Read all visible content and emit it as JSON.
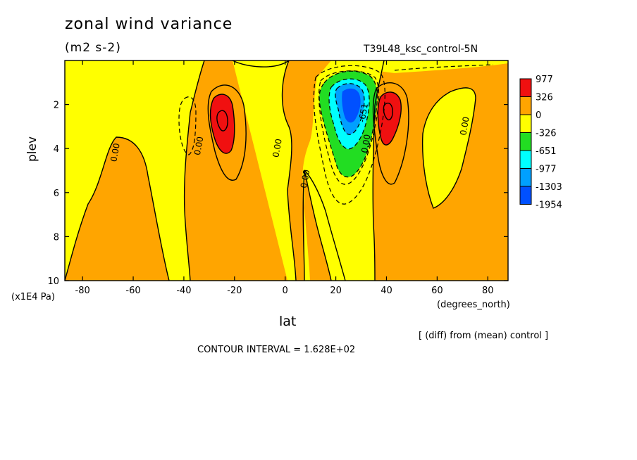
{
  "title": "zonal wind variance",
  "units": "(m2 s-2)",
  "run_name": "T39L48_ksc_control-5N",
  "diff_note": "[ (diff) from (mean) control ]",
  "contour_note": "CONTOUR INTERVAL = 1.628E+02",
  "colors": {
    "red": "#f01010",
    "orange": "#ffa500",
    "yellow": "#ffff00",
    "green": "#22dd22",
    "cyan": "#00ffff",
    "lightblue": "#00a0ff",
    "blue": "#0050ff"
  },
  "chart_data": {
    "type": "heatmap",
    "xlabel": "lat",
    "ylabel": "plev",
    "x_unit": "(degrees_north)",
    "y_unit": "(x1E4 Pa)",
    "xlim": [
      -87,
      88
    ],
    "ylim": [
      10,
      0
    ],
    "x_ticks": [
      -80,
      -60,
      -40,
      -20,
      0,
      20,
      40,
      60,
      80
    ],
    "y_ticks": [
      2,
      4,
      6,
      8,
      10
    ],
    "legend": {
      "position": "right",
      "labels": [
        "977",
        "326",
        "0",
        "-326",
        "-651",
        "-977",
        "-1303",
        "-1954"
      ],
      "colors": [
        "#f01010",
        "#ffa500",
        "#ffff00",
        "#22dd22",
        "#00ffff",
        "#00a0ff",
        "#0050ff"
      ]
    },
    "contour_labels": [
      {
        "text": "0.00",
        "lat": -66,
        "plev": 4.2
      },
      {
        "text": "0.00",
        "lat": -33,
        "plev": 3.9
      },
      {
        "text": "0.00",
        "lat": -2,
        "plev": 4.0
      },
      {
        "text": "0.00",
        "lat": 9,
        "plev": 5.4
      },
      {
        "text": "0.00",
        "lat": 33,
        "plev": 3.8
      },
      {
        "text": "0.00",
        "lat": 72,
        "plev": 3.0
      },
      {
        "text": "-651",
        "lat": 32,
        "plev": 2.4
      }
    ],
    "features": [
      {
        "name": "southern-maximum",
        "lat": -26,
        "plev": 2.9,
        "level": "977"
      },
      {
        "name": "northern-maximum",
        "lat": 41,
        "plev": 2.5,
        "level": "977"
      },
      {
        "name": "tropical-minimum",
        "lat": 25,
        "plev": 2.2,
        "level": "-1954"
      }
    ]
  }
}
